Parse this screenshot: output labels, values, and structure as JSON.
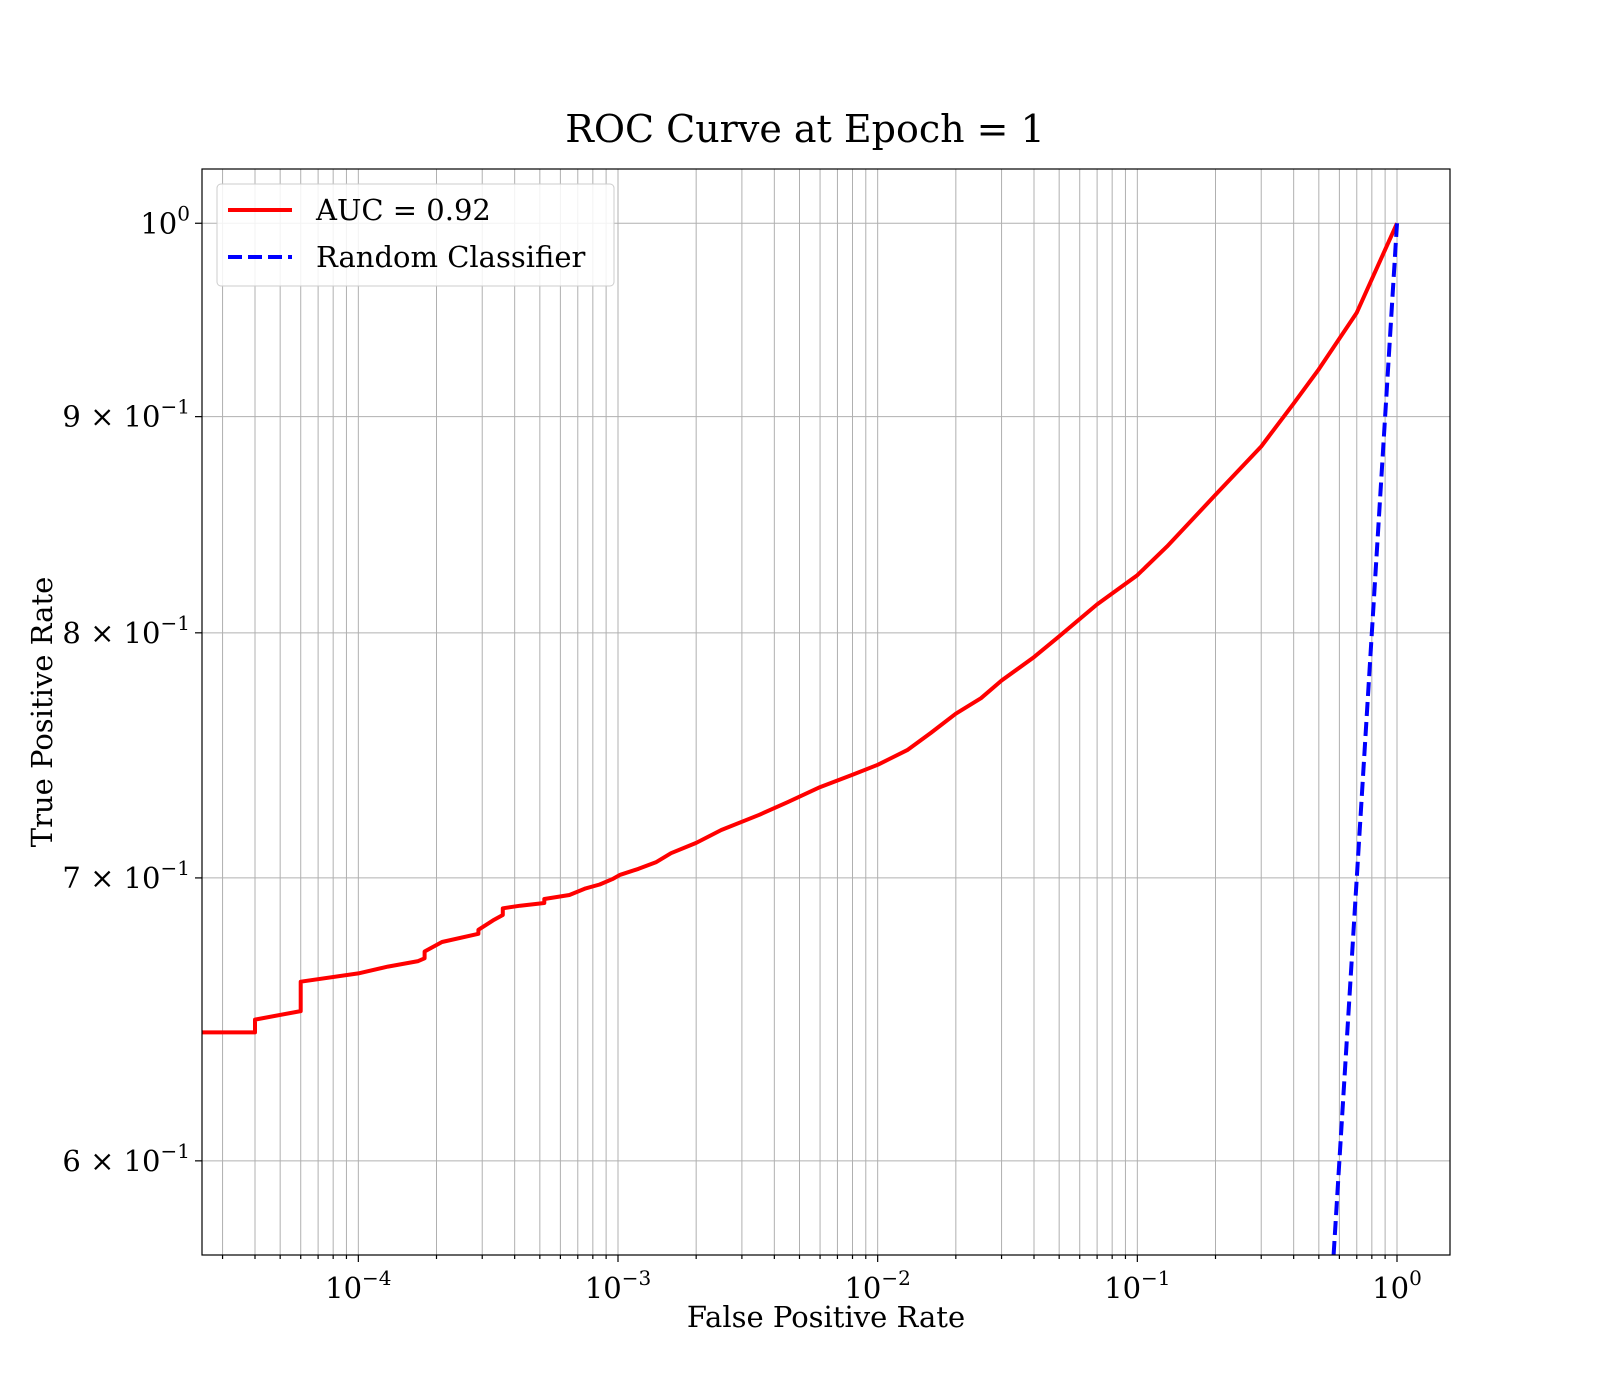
{
  "chart_data": {
    "type": "line",
    "title": "ROC Curve at Epoch = 1",
    "xlabel": "False Positive Rate",
    "ylabel": "True Positive Rate",
    "x_scale": "log",
    "y_scale": "log",
    "xlim": [
      2.5e-05,
      1.6
    ],
    "ylim": [
      0.57,
      1.03
    ],
    "grid": "both (major and minor)",
    "legend_placement": "top-left",
    "x_ticks": [
      {
        "value": 0.0001,
        "base": "10",
        "exp": "−4"
      },
      {
        "value": 0.001,
        "base": "10",
        "exp": "−3"
      },
      {
        "value": 0.01,
        "base": "10",
        "exp": "−2"
      },
      {
        "value": 0.1,
        "base": "10",
        "exp": "−1"
      },
      {
        "value": 1,
        "base": "10",
        "exp": "0"
      }
    ],
    "y_ticks": [
      {
        "value": 1.0,
        "mant": "",
        "base": "10",
        "exp": "0"
      },
      {
        "value": 0.9,
        "mant": "9 × ",
        "base": "10",
        "exp": "−1"
      },
      {
        "value": 0.8,
        "mant": "8 × ",
        "base": "10",
        "exp": "−1"
      },
      {
        "value": 0.7,
        "mant": "7 × ",
        "base": "10",
        "exp": "−1"
      },
      {
        "value": 0.6,
        "mant": "6 × ",
        "base": "10",
        "exp": "−1"
      }
    ],
    "series": [
      {
        "name": "AUC = 0.92",
        "color": "#ff0000",
        "style": "solid",
        "x": [
          2.5e-05,
          4e-05,
          4e-05,
          6e-05,
          6e-05,
          0.0001,
          0.00013,
          0.00017,
          0.00018,
          0.00018,
          0.00021,
          0.00029,
          0.00029,
          0.00033,
          0.00036,
          0.00036,
          0.00042,
          0.00052,
          0.00052,
          0.00065,
          0.00075,
          0.00085,
          0.00095,
          0.00102,
          0.0012,
          0.0014,
          0.0016,
          0.002,
          0.0025,
          0.0035,
          0.0045,
          0.006,
          0.008,
          0.01,
          0.013,
          0.016,
          0.02,
          0.025,
          0.03,
          0.04,
          0.05,
          0.07,
          0.1,
          0.13,
          0.2,
          0.3,
          0.4,
          0.5,
          0.7,
          1.0
        ],
        "y": [
          0.6435,
          0.6435,
          0.648,
          0.651,
          0.6615,
          0.6645,
          0.667,
          0.669,
          0.67,
          0.6725,
          0.676,
          0.679,
          0.6805,
          0.684,
          0.686,
          0.6885,
          0.6895,
          0.6905,
          0.692,
          0.6935,
          0.696,
          0.6975,
          0.6995,
          0.7012,
          0.7035,
          0.706,
          0.7095,
          0.7135,
          0.7185,
          0.7245,
          0.7295,
          0.7355,
          0.7405,
          0.7445,
          0.7505,
          0.7575,
          0.7655,
          0.772,
          0.7795,
          0.7895,
          0.7985,
          0.8125,
          0.8255,
          0.8385,
          0.8625,
          0.8855,
          0.9065,
          0.9235,
          0.9525,
          1.0
        ]
      },
      {
        "name": "Random Classifier",
        "color": "#0000ff",
        "style": "dashed",
        "x": [
          0.57,
          1.0
        ],
        "y": [
          0.57,
          1.0
        ]
      }
    ]
  }
}
